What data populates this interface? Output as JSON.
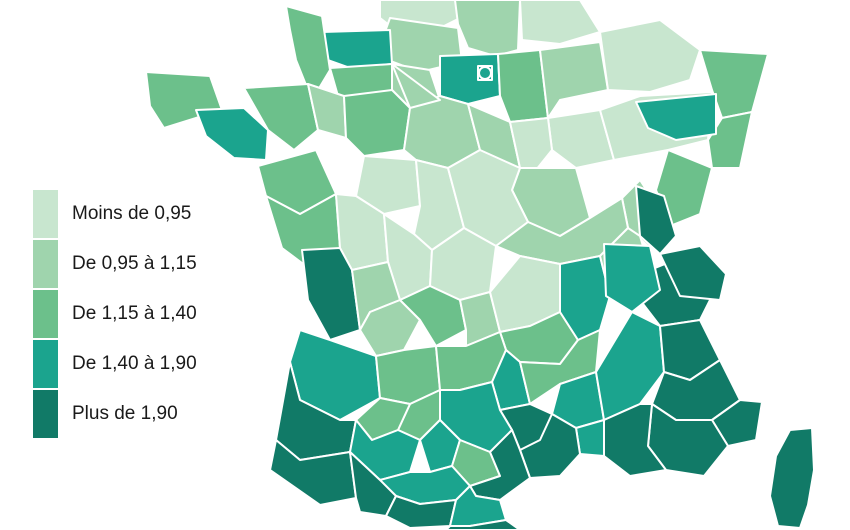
{
  "legend": {
    "items": [
      {
        "label": "Moins de 0,95",
        "color": "#c8e6cf"
      },
      {
        "label": "De 0,95 à 1,15",
        "color": "#9fd4ad"
      },
      {
        "label": "De 1,15 à 1,40",
        "color": "#6cc08b"
      },
      {
        "label": "De 1,40 à 1,90",
        "color": "#1ba48e"
      },
      {
        "label": "Plus de 1,90",
        "color": "#117a67"
      }
    ]
  },
  "map": {
    "regions": [
      {
        "name": "nord-pas-de-calais",
        "class": 0
      },
      {
        "name": "aisne",
        "class": 1
      },
      {
        "name": "ardennes",
        "class": 0
      },
      {
        "name": "seine-maritime",
        "class": 1
      },
      {
        "name": "calvados",
        "class": 3
      },
      {
        "name": "manche",
        "class": 2
      },
      {
        "name": "eure",
        "class": 1
      },
      {
        "name": "orne",
        "class": 2
      },
      {
        "name": "ile-de-france",
        "class": 3
      },
      {
        "name": "paris",
        "class": 3
      },
      {
        "name": "marne",
        "class": 2
      },
      {
        "name": "meuse",
        "class": 1
      },
      {
        "name": "moselle",
        "class": 0
      },
      {
        "name": "bas-rhin",
        "class": 2
      },
      {
        "name": "haut-rhin",
        "class": 2
      },
      {
        "name": "haute-marne",
        "class": 0
      },
      {
        "name": "vosges",
        "class": 0
      },
      {
        "name": "haute-saone",
        "class": 3
      },
      {
        "name": "doubs",
        "class": 2
      },
      {
        "name": "jura",
        "class": 1
      },
      {
        "name": "ain",
        "class": 4
      },
      {
        "name": "finistere",
        "class": 2
      },
      {
        "name": "morbihan",
        "class": 3
      },
      {
        "name": "ille-et-vilaine",
        "class": 2
      },
      {
        "name": "loire-atlantique",
        "class": 2
      },
      {
        "name": "mayenne",
        "class": 1
      },
      {
        "name": "sarthe",
        "class": 2
      },
      {
        "name": "loiret",
        "class": 1
      },
      {
        "name": "eure-et-loir",
        "class": 1
      },
      {
        "name": "loir-et-cher",
        "class": 0
      },
      {
        "name": "cher",
        "class": 0
      },
      {
        "name": "yonne",
        "class": 1
      },
      {
        "name": "aube",
        "class": 0
      },
      {
        "name": "cote-dor",
        "class": 1
      },
      {
        "name": "nievre",
        "class": 0
      },
      {
        "name": "saone-et-loire",
        "class": 1
      },
      {
        "name": "vendee",
        "class": 2
      },
      {
        "name": "maine-et-loire",
        "class": 0
      },
      {
        "name": "vienne",
        "class": 0
      },
      {
        "name": "indre",
        "class": 0
      },
      {
        "name": "charente-maritime",
        "class": 4
      },
      {
        "name": "deux-sevres",
        "class": 1
      },
      {
        "name": "charente",
        "class": 1
      },
      {
        "name": "haute-vienne",
        "class": 2
      },
      {
        "name": "creuse",
        "class": 1
      },
      {
        "name": "allier",
        "class": 0
      },
      {
        "name": "puy-de-dome",
        "class": 2
      },
      {
        "name": "loire",
        "class": 3
      },
      {
        "name": "rhone",
        "class": 1
      },
      {
        "name": "savoie",
        "class": 4
      },
      {
        "name": "isere",
        "class": 3
      },
      {
        "name": "haute-savoie",
        "class": 4
      },
      {
        "name": "gironde",
        "class": 3
      },
      {
        "name": "dordogne",
        "class": 2
      },
      {
        "name": "correze",
        "class": 2
      },
      {
        "name": "cantal",
        "class": 3
      },
      {
        "name": "haute-loire",
        "class": 2
      },
      {
        "name": "ardeche",
        "class": 3
      },
      {
        "name": "drome",
        "class": 3
      },
      {
        "name": "hautes-alpes",
        "class": 4
      },
      {
        "name": "alpes-de-haute-provence",
        "class": 4
      },
      {
        "name": "alpes-maritimes",
        "class": 4
      },
      {
        "name": "var",
        "class": 4
      },
      {
        "name": "bouches-du-rhone",
        "class": 4
      },
      {
        "name": "vaucluse",
        "class": 3
      },
      {
        "name": "gard",
        "class": 4
      },
      {
        "name": "lozere",
        "class": 4
      },
      {
        "name": "aveyron",
        "class": 3
      },
      {
        "name": "lot",
        "class": 2
      },
      {
        "name": "lot-et-garonne",
        "class": 2
      },
      {
        "name": "landes",
        "class": 4
      },
      {
        "name": "pyrenees-atlantiques",
        "class": 4
      },
      {
        "name": "gers",
        "class": 3
      },
      {
        "name": "tarn-et-garonne",
        "class": 3
      },
      {
        "name": "tarn",
        "class": 2
      },
      {
        "name": "herault",
        "class": 4
      },
      {
        "name": "haute-garonne",
        "class": 3
      },
      {
        "name": "hautes-pyrenees",
        "class": 4
      },
      {
        "name": "ariege",
        "class": 4
      },
      {
        "name": "aude",
        "class": 3
      },
      {
        "name": "pyrenees-orientales",
        "class": 4
      },
      {
        "name": "corse",
        "class": 4
      }
    ]
  }
}
